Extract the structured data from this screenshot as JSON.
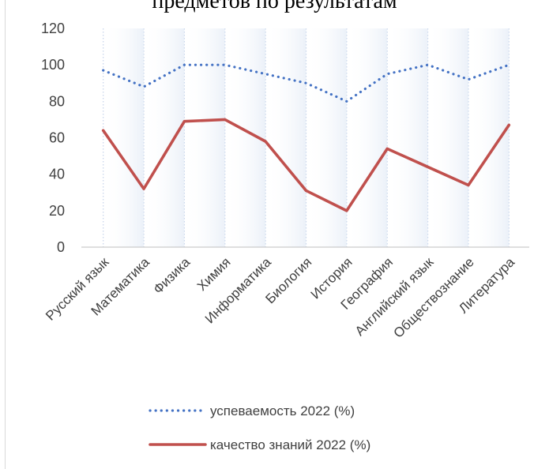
{
  "top_text": "предметов по результатам",
  "chart_data": {
    "type": "line",
    "categories": [
      "Русский язык",
      "Математика",
      "Физика",
      "Химия",
      "Информатика",
      "Биология",
      "История",
      "География",
      "Английский язык",
      "Обществознание",
      "Литература"
    ],
    "series": [
      {
        "name": "успеваемость 2022 (%)",
        "values": [
          97,
          88,
          100,
          100,
          95,
          90,
          80,
          95,
          100,
          92,
          100
        ],
        "color": "#4472c4",
        "style": "dotted"
      },
      {
        "name": "качество знаний 2022 (%)",
        "values": [
          64,
          32,
          69,
          70,
          58,
          31,
          20,
          54,
          44,
          34,
          67
        ],
        "color": "#c0504d",
        "style": "solid"
      }
    ],
    "ylim": [
      0,
      120
    ],
    "yticks": [
      0,
      20,
      40,
      60,
      80,
      100,
      120
    ],
    "grid": "vertical",
    "legend": "bottom"
  }
}
